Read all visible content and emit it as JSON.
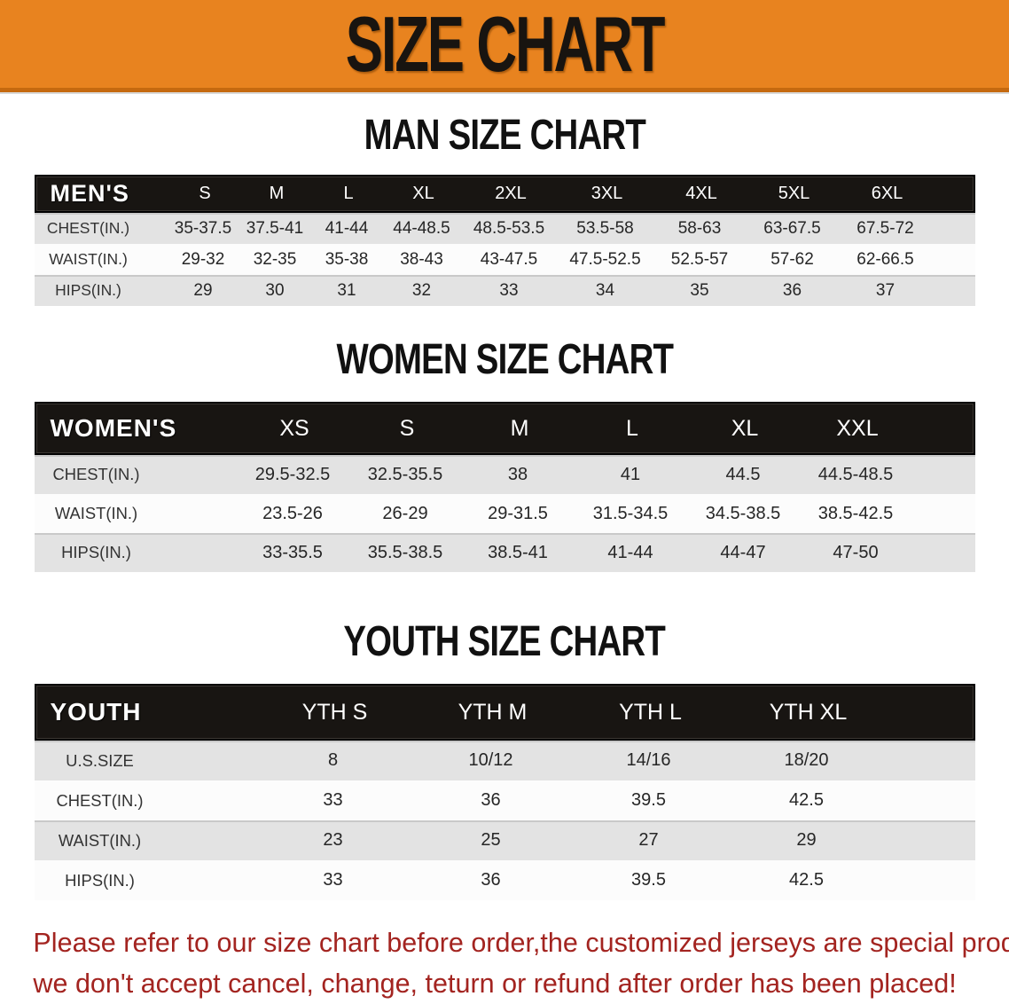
{
  "banner": {
    "title": "SIZE CHART",
    "bg_color": "#E8831F",
    "text_color": "#181410"
  },
  "sections": {
    "men": {
      "title": "MAN SIZE CHART",
      "group_label": "MEN'S",
      "columns": [
        "S",
        "M",
        "L",
        "XL",
        "2XL",
        "3XL",
        "4XL",
        "5XL",
        "6XL"
      ],
      "rows": [
        {
          "label": "CHEST(IN.)",
          "values": [
            "35-37.5",
            "37.5-41",
            "41-44",
            "44-48.5",
            "48.5-53.5",
            "53.5-58",
            "58-63",
            "63-67.5",
            "67.5-72"
          ]
        },
        {
          "label": "WAIST(IN.)",
          "values": [
            "29-32",
            "32-35",
            "35-38",
            "38-43",
            "43-47.5",
            "47.5-52.5",
            "52.5-57",
            "57-62",
            "62-66.5"
          ]
        },
        {
          "label": "HIPS(IN.)",
          "values": [
            "29",
            "30",
            "31",
            "32",
            "33",
            "34",
            "35",
            "36",
            "37"
          ]
        }
      ]
    },
    "women": {
      "title": "WOMEN SIZE CHART",
      "group_label": "WOMEN'S",
      "columns": [
        "XS",
        "S",
        "M",
        "L",
        "XL",
        "XXL"
      ],
      "rows": [
        {
          "label": "CHEST(IN.)",
          "values": [
            "29.5-32.5",
            "32.5-35.5",
            "38",
            "41",
            "44.5",
            "44.5-48.5"
          ]
        },
        {
          "label": "WAIST(IN.)",
          "values": [
            "23.5-26",
            "26-29",
            "29-31.5",
            "31.5-34.5",
            "34.5-38.5",
            "38.5-42.5"
          ]
        },
        {
          "label": "HIPS(IN.)",
          "values": [
            "33-35.5",
            "35.5-38.5",
            "38.5-41",
            "41-44",
            "44-47",
            "47-50"
          ]
        }
      ]
    },
    "youth": {
      "title": "YOUTH SIZE CHART",
      "group_label": "YOUTH",
      "columns": [
        "YTH S",
        "YTH M",
        "YTH L",
        "YTH XL"
      ],
      "rows": [
        {
          "label": "U.S.SIZE",
          "values": [
            "8",
            "10/12",
            "14/16",
            "18/20"
          ]
        },
        {
          "label": "CHEST(IN.)",
          "values": [
            "33",
            "36",
            "39.5",
            "42.5"
          ]
        },
        {
          "label": "WAIST(IN.)",
          "values": [
            "23",
            "25",
            "27",
            "29"
          ]
        },
        {
          "label": "HIPS(IN.)",
          "values": [
            "33",
            "36",
            "39.5",
            "42.5"
          ]
        }
      ]
    }
  },
  "table_style": {
    "header_bg": "#181512",
    "header_text": "#FFFFFF",
    "shaded_row_bg": "#E3E3E3",
    "plain_row_bg": "#FCFCFC"
  },
  "disclaimer": {
    "line1": "Please refer to our size chart before order,the customized jerseys are special products,",
    "line2": "we don't accept cancel, change, teturn or refund after order has been placed!",
    "color": "#A32420"
  }
}
